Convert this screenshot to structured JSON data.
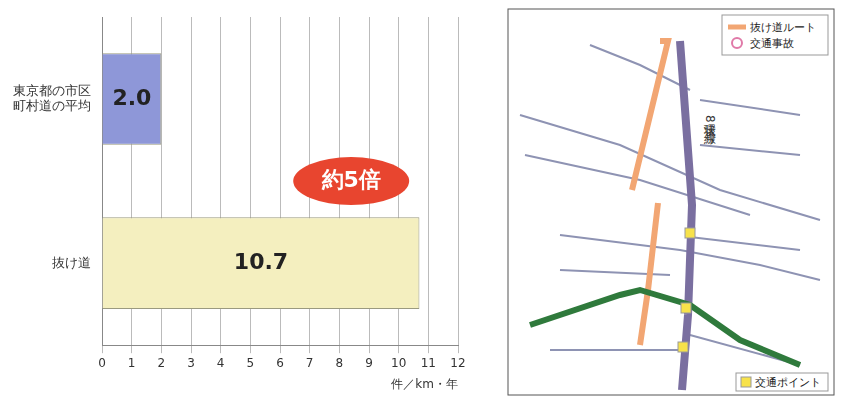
{
  "chart_data": {
    "type": "bar",
    "orientation": "horizontal",
    "categories": [
      "東京都の市区町村道の平均",
      "抜け道"
    ],
    "values": [
      2.0,
      10.7
    ],
    "value_labels": [
      "2.0",
      "10.7"
    ],
    "colors": [
      "#8e97d8",
      "#f4efbf"
    ],
    "xlim": [
      0,
      12
    ],
    "xticks": [
      0,
      1,
      2,
      3,
      4,
      5,
      6,
      7,
      8,
      9,
      10,
      11,
      12
    ],
    "xlabel": "件／km・年",
    "annotation": "約5倍",
    "data_labels": true,
    "grid": true
  },
  "map": {
    "legend": [
      {
        "label": "抜け道ルート",
        "color": "#f2a673"
      },
      {
        "label": "交通事故",
        "color": "#e07aa8"
      }
    ],
    "point_legend": {
      "label": "交通ポイント",
      "color": "#f7e24a"
    },
    "road_label": "環状8号線"
  }
}
